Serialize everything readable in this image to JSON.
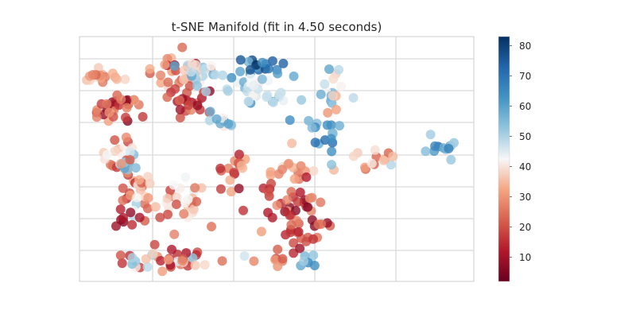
{
  "chart_data": {
    "type": "scatter",
    "title": "t-SNE Manifold (fit in 4.50 seconds)",
    "xlabel": "",
    "ylabel": "",
    "grid": true,
    "colormap": "RdBu",
    "colorbar": {
      "range": [
        2,
        83
      ],
      "ticks": [
        10,
        20,
        30,
        40,
        50,
        60,
        70,
        80
      ],
      "tick_labels": [
        "10",
        "20",
        "30",
        "40",
        "50",
        "60",
        "70",
        "80"
      ],
      "low_color": "#67001f",
      "mid_color": "#f7f7f7",
      "high_color": "#053061"
    },
    "clusters": [
      {
        "cx": 0.06,
        "cy": 0.84,
        "sx": 0.02,
        "sy": 0.02,
        "n": 16,
        "vmin": 20,
        "vmax": 40
      },
      {
        "cx": 0.1,
        "cy": 0.71,
        "sx": 0.035,
        "sy": 0.03,
        "n": 30,
        "vmin": 5,
        "vmax": 35
      },
      {
        "cx": 0.105,
        "cy": 0.51,
        "sx": 0.02,
        "sy": 0.05,
        "n": 22,
        "vmin": 15,
        "vmax": 45
      },
      {
        "cx": 0.12,
        "cy": 0.47,
        "sx": 0.02,
        "sy": 0.02,
        "n": 10,
        "vmin": 45,
        "vmax": 60
      },
      {
        "cx": 0.24,
        "cy": 0.86,
        "sx": 0.04,
        "sy": 0.04,
        "n": 30,
        "vmin": 5,
        "vmax": 45
      },
      {
        "cx": 0.31,
        "cy": 0.86,
        "sx": 0.04,
        "sy": 0.03,
        "n": 20,
        "vmin": 35,
        "vmax": 60
      },
      {
        "cx": 0.28,
        "cy": 0.74,
        "sx": 0.035,
        "sy": 0.035,
        "n": 22,
        "vmin": 5,
        "vmax": 30
      },
      {
        "cx": 0.36,
        "cy": 0.66,
        "sx": 0.02,
        "sy": 0.03,
        "n": 10,
        "vmin": 40,
        "vmax": 60
      },
      {
        "cx": 0.39,
        "cy": 0.47,
        "sx": 0.02,
        "sy": 0.04,
        "n": 16,
        "vmin": 10,
        "vmax": 35
      },
      {
        "cx": 0.42,
        "cy": 0.8,
        "sx": 0.04,
        "sy": 0.03,
        "n": 24,
        "vmin": 40,
        "vmax": 65
      },
      {
        "cx": 0.47,
        "cy": 0.87,
        "sx": 0.03,
        "sy": 0.02,
        "n": 18,
        "vmin": 55,
        "vmax": 83
      },
      {
        "cx": 0.51,
        "cy": 0.76,
        "sx": 0.02,
        "sy": 0.02,
        "n": 8,
        "vmin": 40,
        "vmax": 55
      },
      {
        "cx": 0.53,
        "cy": 0.46,
        "sx": 0.025,
        "sy": 0.04,
        "n": 12,
        "vmin": 20,
        "vmax": 40
      },
      {
        "cx": 0.56,
        "cy": 0.33,
        "sx": 0.05,
        "sy": 0.06,
        "n": 40,
        "vmin": 5,
        "vmax": 35
      },
      {
        "cx": 0.57,
        "cy": 0.2,
        "sx": 0.03,
        "sy": 0.04,
        "n": 18,
        "vmin": 5,
        "vmax": 25
      },
      {
        "cx": 0.58,
        "cy": 0.08,
        "sx": 0.01,
        "sy": 0.02,
        "n": 7,
        "vmin": 50,
        "vmax": 65
      },
      {
        "cx": 0.62,
        "cy": 0.6,
        "sx": 0.03,
        "sy": 0.04,
        "n": 16,
        "vmin": 50,
        "vmax": 75
      },
      {
        "cx": 0.65,
        "cy": 0.77,
        "sx": 0.025,
        "sy": 0.035,
        "n": 18,
        "vmin": 30,
        "vmax": 60
      },
      {
        "cx": 0.74,
        "cy": 0.5,
        "sx": 0.04,
        "sy": 0.02,
        "n": 14,
        "vmin": 20,
        "vmax": 65
      },
      {
        "cx": 0.91,
        "cy": 0.53,
        "sx": 0.02,
        "sy": 0.02,
        "n": 12,
        "vmin": 50,
        "vmax": 75
      },
      {
        "cx": 0.14,
        "cy": 0.37,
        "sx": 0.03,
        "sy": 0.06,
        "n": 20,
        "vmin": 10,
        "vmax": 55
      },
      {
        "cx": 0.24,
        "cy": 0.33,
        "sx": 0.06,
        "sy": 0.05,
        "n": 36,
        "vmin": 15,
        "vmax": 50
      },
      {
        "cx": 0.12,
        "cy": 0.24,
        "sx": 0.02,
        "sy": 0.02,
        "n": 8,
        "vmin": 5,
        "vmax": 15
      },
      {
        "cx": 0.22,
        "cy": 0.09,
        "sx": 0.07,
        "sy": 0.02,
        "n": 45,
        "vmin": 10,
        "vmax": 55
      },
      {
        "cx": 0.5,
        "cy": 0.09,
        "sx": 0.01,
        "sy": 0.02,
        "n": 6,
        "vmin": 15,
        "vmax": 35
      }
    ]
  }
}
